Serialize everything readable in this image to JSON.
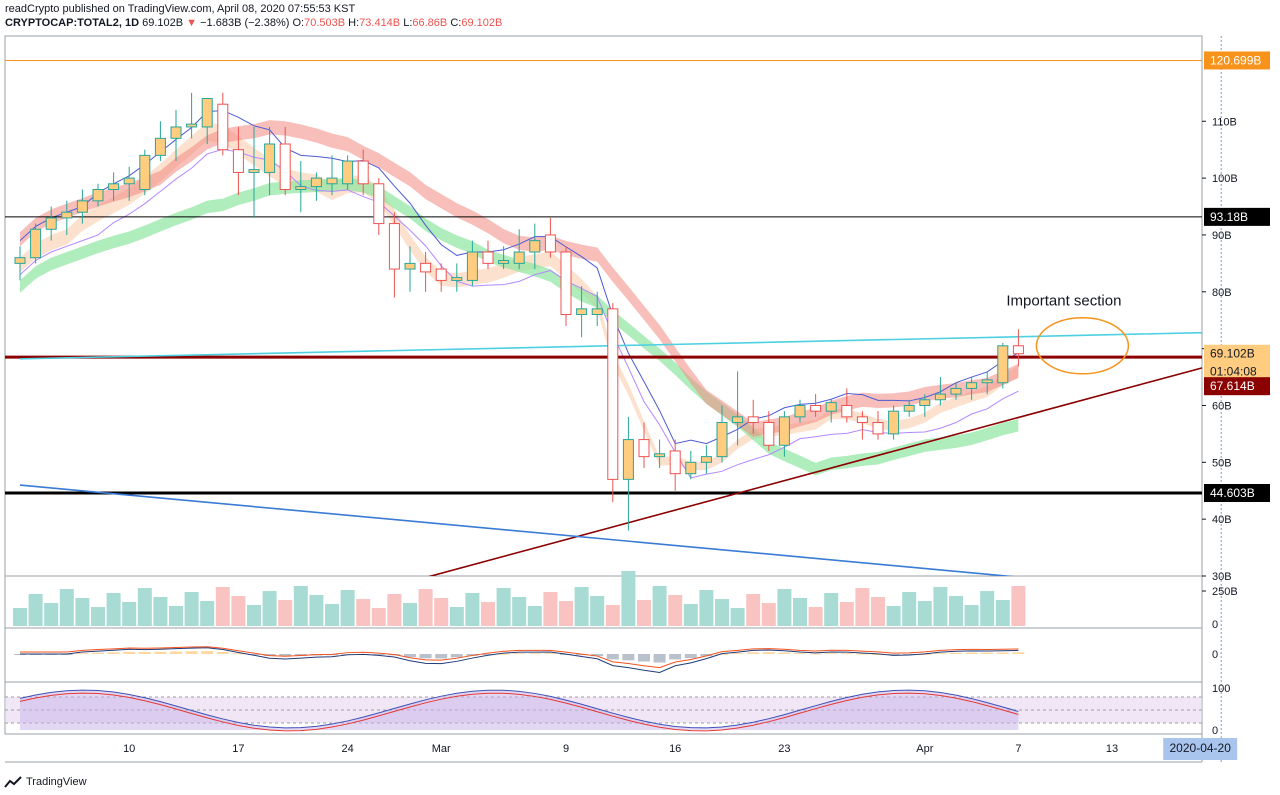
{
  "header": {
    "publisher": "readCrypto published on TradingView.com, April 08, 2020 07:55:53 KST",
    "symbol": "CRYPTOCAP:TOTAL2, 1D",
    "last": "69.102B",
    "change_arrow": "▼",
    "change": "−1.683B (−2.38%)",
    "o_label": "O:",
    "o": "70.503B",
    "h_label": "H:",
    "h": "73.414B",
    "l_label": "L:",
    "l": "66.86B",
    "c_label": "C:",
    "c": "69.102B"
  },
  "footer": {
    "brand": "TradingView"
  },
  "colors": {
    "up": "#26a69a",
    "down": "#ef5350",
    "body_up": "#ffcc80",
    "body_down": "#ffffff",
    "ribbon_red": "#f28b82",
    "ribbon_green": "#8ee6a0",
    "ribbon_cyan": "#a8e4ef",
    "ribbon_peach": "#f9c9a6",
    "orange_line": "#f7931a",
    "cyan_line": "#4dd0e1",
    "darkred": "#8b0000",
    "blue_line": "#3a7bd5"
  },
  "chart_data": [
    {
      "type": "candlestick",
      "y_axis": {
        "min": 30,
        "max": 125,
        "unit": "B",
        "ticks": [
          "30B",
          "40B",
          "50B",
          "60B",
          "70B",
          "80B",
          "90B",
          "100B",
          "110B"
        ]
      },
      "x_axis": {
        "ticks": [
          "10",
          "17",
          "24",
          "Mar",
          "9",
          "16",
          "23",
          "Apr",
          "7",
          "13"
        ],
        "cursor_label": "2020-04-20"
      },
      "candles": [
        {
          "date": "2020-02-03",
          "o": 85.0,
          "h": 88.0,
          "l": 82.0,
          "c": 86.0
        },
        {
          "date": "2020-02-04",
          "o": 86.0,
          "h": 92.0,
          "l": 85.0,
          "c": 91.0
        },
        {
          "date": "2020-02-05",
          "o": 91.0,
          "h": 95.0,
          "l": 89.0,
          "c": 93.0
        },
        {
          "date": "2020-02-06",
          "o": 93.0,
          "h": 96.0,
          "l": 90.0,
          "c": 94.0
        },
        {
          "date": "2020-02-07",
          "o": 94.0,
          "h": 98.0,
          "l": 92.0,
          "c": 96.0
        },
        {
          "date": "2020-02-08",
          "o": 96.0,
          "h": 99.0,
          "l": 95.0,
          "c": 98.0
        },
        {
          "date": "2020-02-09",
          "o": 98.0,
          "h": 101.0,
          "l": 96.0,
          "c": 99.0
        },
        {
          "date": "2020-02-10",
          "o": 99.0,
          "h": 102.0,
          "l": 96.0,
          "c": 100.0
        },
        {
          "date": "2020-02-11",
          "o": 98.0,
          "h": 105.0,
          "l": 97.0,
          "c": 104.0
        },
        {
          "date": "2020-02-12",
          "o": 104.0,
          "h": 110.0,
          "l": 103.0,
          "c": 107.0
        },
        {
          "date": "2020-02-13",
          "o": 107.0,
          "h": 112.0,
          "l": 103.0,
          "c": 109.0
        },
        {
          "date": "2020-02-14",
          "o": 109.0,
          "h": 115.0,
          "l": 107.0,
          "c": 109.5
        },
        {
          "date": "2020-02-15",
          "o": 109.0,
          "h": 114.0,
          "l": 106.0,
          "c": 114.0
        },
        {
          "date": "2020-02-16",
          "o": 113.0,
          "h": 115.0,
          "l": 104.0,
          "c": 105.0
        },
        {
          "date": "2020-02-17",
          "o": 105.0,
          "h": 109.0,
          "l": 97.0,
          "c": 101.0
        },
        {
          "date": "2020-02-18",
          "o": 101.0,
          "h": 109.0,
          "l": 93.0,
          "c": 101.5
        },
        {
          "date": "2020-02-19",
          "o": 101.0,
          "h": 109.0,
          "l": 97.0,
          "c": 106.0
        },
        {
          "date": "2020-02-20",
          "o": 106.0,
          "h": 109.0,
          "l": 97.0,
          "c": 98.0
        },
        {
          "date": "2020-02-21",
          "o": 98.0,
          "h": 103.0,
          "l": 94.0,
          "c": 98.5
        },
        {
          "date": "2020-02-22",
          "o": 98.5,
          "h": 101.0,
          "l": 96.0,
          "c": 100.0
        },
        {
          "date": "2020-02-23",
          "o": 99.0,
          "h": 104.0,
          "l": 97.0,
          "c": 100.0
        },
        {
          "date": "2020-02-24",
          "o": 99.0,
          "h": 104.0,
          "l": 98.0,
          "c": 103.0
        },
        {
          "date": "2020-02-25",
          "o": 103.0,
          "h": 105.0,
          "l": 97.0,
          "c": 99.0
        },
        {
          "date": "2020-02-26",
          "o": 99.0,
          "h": 100.0,
          "l": 90.0,
          "c": 92.0
        },
        {
          "date": "2020-02-27",
          "o": 92.0,
          "h": 94.0,
          "l": 79.0,
          "c": 84.0
        },
        {
          "date": "2020-02-28",
          "o": 84.0,
          "h": 88.0,
          "l": 80.0,
          "c": 85.0
        },
        {
          "date": "2020-02-29",
          "o": 85.0,
          "h": 87.0,
          "l": 80.0,
          "c": 83.5
        },
        {
          "date": "2020-03-01",
          "o": 84.0,
          "h": 85.0,
          "l": 80.0,
          "c": 82.0
        },
        {
          "date": "2020-03-02",
          "o": 82.0,
          "h": 85.0,
          "l": 80.0,
          "c": 82.5
        },
        {
          "date": "2020-03-03",
          "o": 82.0,
          "h": 89.0,
          "l": 81.0,
          "c": 87.0
        },
        {
          "date": "2020-03-04",
          "o": 87.0,
          "h": 89.0,
          "l": 84.0,
          "c": 85.0
        },
        {
          "date": "2020-03-05",
          "o": 85.0,
          "h": 88.0,
          "l": 84.0,
          "c": 85.5
        },
        {
          "date": "2020-03-06",
          "o": 85.0,
          "h": 91.0,
          "l": 84.0,
          "c": 87.0
        },
        {
          "date": "2020-03-07",
          "o": 87.0,
          "h": 92.0,
          "l": 84.0,
          "c": 89.0
        },
        {
          "date": "2020-03-08",
          "o": 90.0,
          "h": 93.0,
          "l": 86.0,
          "c": 87.0
        },
        {
          "date": "2020-03-09",
          "o": 87.0,
          "h": 88.0,
          "l": 74.0,
          "c": 76.0
        },
        {
          "date": "2020-03-10",
          "o": 76.0,
          "h": 81.0,
          "l": 72.0,
          "c": 77.0
        },
        {
          "date": "2020-03-11",
          "o": 76.0,
          "h": 80.0,
          "l": 74.0,
          "c": 77.0
        },
        {
          "date": "2020-03-12",
          "o": 77.0,
          "h": 78.0,
          "l": 43.0,
          "c": 47.0
        },
        {
          "date": "2020-03-13",
          "o": 47.0,
          "h": 58.0,
          "l": 38.0,
          "c": 54.0
        },
        {
          "date": "2020-03-14",
          "o": 54.0,
          "h": 57.0,
          "l": 49.0,
          "c": 51.0
        },
        {
          "date": "2020-03-15",
          "o": 51.0,
          "h": 54.0,
          "l": 49.0,
          "c": 51.5
        },
        {
          "date": "2020-03-16",
          "o": 52.0,
          "h": 54.0,
          "l": 45.0,
          "c": 48.0
        },
        {
          "date": "2020-03-17",
          "o": 48.0,
          "h": 52.0,
          "l": 47.0,
          "c": 50.0
        },
        {
          "date": "2020-03-18",
          "o": 50.0,
          "h": 53.0,
          "l": 48.0,
          "c": 51.0
        },
        {
          "date": "2020-03-19",
          "o": 51.0,
          "h": 60.0,
          "l": 50.0,
          "c": 57.0
        },
        {
          "date": "2020-03-20",
          "o": 57.0,
          "h": 66.0,
          "l": 53.0,
          "c": 58.0
        },
        {
          "date": "2020-03-21",
          "o": 58.0,
          "h": 61.0,
          "l": 55.0,
          "c": 57.0
        },
        {
          "date": "2020-03-22",
          "o": 57.0,
          "h": 59.0,
          "l": 52.0,
          "c": 53.0
        },
        {
          "date": "2020-03-23",
          "o": 53.0,
          "h": 59.0,
          "l": 51.0,
          "c": 58.0
        },
        {
          "date": "2020-03-24",
          "o": 58.0,
          "h": 61.0,
          "l": 57.0,
          "c": 60.0
        },
        {
          "date": "2020-03-25",
          "o": 60.0,
          "h": 62.0,
          "l": 58.0,
          "c": 59.0
        },
        {
          "date": "2020-03-26",
          "o": 59.0,
          "h": 61.0,
          "l": 57.0,
          "c": 60.5
        },
        {
          "date": "2020-03-27",
          "o": 60.0,
          "h": 63.0,
          "l": 57.0,
          "c": 58.0
        },
        {
          "date": "2020-03-28",
          "o": 58.0,
          "h": 59.0,
          "l": 54.0,
          "c": 57.0
        },
        {
          "date": "2020-03-29",
          "o": 57.0,
          "h": 59.0,
          "l": 54.0,
          "c": 55.0
        },
        {
          "date": "2020-03-30",
          "o": 55.0,
          "h": 60.0,
          "l": 54.0,
          "c": 59.0
        },
        {
          "date": "2020-03-31",
          "o": 59.0,
          "h": 61.0,
          "l": 58.0,
          "c": 60.0
        },
        {
          "date": "2020-04-01",
          "o": 60.0,
          "h": 62.0,
          "l": 58.0,
          "c": 61.0
        },
        {
          "date": "2020-04-02",
          "o": 61.0,
          "h": 65.0,
          "l": 60.0,
          "c": 62.0
        },
        {
          "date": "2020-04-03",
          "o": 62.0,
          "h": 64.0,
          "l": 61.0,
          "c": 63.0
        },
        {
          "date": "2020-04-04",
          "o": 63.0,
          "h": 65.0,
          "l": 61.0,
          "c": 64.0
        },
        {
          "date": "2020-04-05",
          "o": 64.0,
          "h": 66.0,
          "l": 62.0,
          "c": 64.5
        },
        {
          "date": "2020-04-06",
          "o": 64.0,
          "h": 71.0,
          "l": 63.0,
          "c": 70.5
        },
        {
          "date": "2020-04-07",
          "o": 70.503,
          "h": 73.414,
          "l": 66.86,
          "c": 69.102
        }
      ],
      "horizontal_lines": [
        {
          "value": 120.699,
          "label": "120.699B",
          "color": "#f7931a"
        },
        {
          "value": 93.18,
          "label": "93.18B",
          "color": "#000000"
        },
        {
          "value": 68.5,
          "label": "",
          "color": "#8b0000"
        },
        {
          "value": 44.603,
          "label": "44.603B",
          "color": "#000000"
        }
      ],
      "price_labels": [
        {
          "value": 69.102,
          "label": "69.102B",
          "color": "#ffcc80"
        },
        {
          "value": 67.614,
          "label": "67.614B",
          "color": "#8b0000"
        }
      ],
      "countdown_label": "01:04:08",
      "trendlines": [
        {
          "from": [
            "2020-02-03",
            68.2
          ],
          "to": [
            "2020-04-22",
            73.0
          ],
          "color": "#4dd0e1"
        },
        {
          "from": [
            "2020-02-28",
            29.0
          ],
          "to": [
            "2020-04-22",
            69.0
          ],
          "color": "#8b0000"
        },
        {
          "from": [
            "2020-02-03",
            46.0
          ],
          "to": [
            "2020-04-07",
            29.8
          ],
          "color": "#3a7bd5"
        }
      ],
      "annotations": [
        {
          "text": "Important section",
          "date": "2020-04-07",
          "value": 78.5
        }
      ]
    },
    {
      "type": "bar",
      "name": "volume",
      "ticks": [
        "250B",
        "0"
      ],
      "ylim": [
        0,
        300
      ]
    },
    {
      "type": "line",
      "name": "macd",
      "ticks": [
        "0"
      ]
    },
    {
      "type": "line",
      "name": "stoch-rsi",
      "ticks": [
        "100",
        "0"
      ],
      "ylim": [
        0,
        100
      ]
    }
  ]
}
